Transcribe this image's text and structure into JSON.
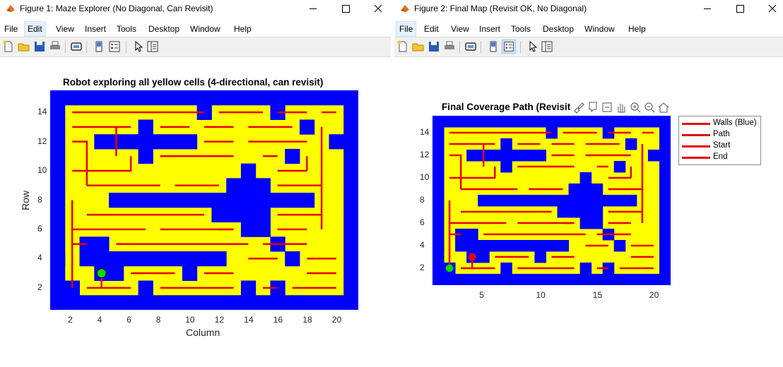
{
  "colors": {
    "wall": "#0000ff",
    "floor": "#ffff00",
    "path": "#e50000",
    "start": "#00dd00",
    "end": "#ee0000",
    "menu_highlight": "#e5f0fb"
  },
  "icons": {
    "app": "matlab-icon",
    "minimize": "minimize-icon",
    "maximize": "maximize-icon",
    "close": "close-icon",
    "new": "new-figure-icon",
    "open": "open-file-icon",
    "save": "save-icon",
    "print": "print-icon",
    "link": "link-plot-icon",
    "colorbar": "colorbar-icon",
    "legend": "insert-legend-icon",
    "pointer": "edit-plot-icon",
    "property": "property-inspector-icon"
  },
  "window1": {
    "title": "Figure 1: Maze Explorer (No Diagonal, Can Revisit)",
    "menu": [
      "File",
      "Edit",
      "View",
      "Insert",
      "Tools",
      "Desktop",
      "Window",
      "Help"
    ],
    "active_menu": "Edit"
  },
  "window2": {
    "title": "Figure 2: Final Map (Revisit OK, No Diagonal)",
    "menu": [
      "File",
      "Edit",
      "View",
      "Insert",
      "Tools",
      "Desktop",
      "Window",
      "Help"
    ],
    "active_menu": "File",
    "axes_toolbar": [
      "brush-icon",
      "data-tips-icon",
      "restore-view-icon",
      "pan-icon",
      "zoom-in-icon",
      "zoom-out-icon",
      "home-icon"
    ]
  },
  "chart_data": [
    {
      "type": "image",
      "title": "Robot exploring all yellow cells (4-directional, can revisit)",
      "xlabel": "Column",
      "ylabel": "Row",
      "xticks": [
        "2",
        "4",
        "6",
        "8",
        "10",
        "12",
        "14",
        "16",
        "18",
        "20"
      ],
      "yticks": [
        "2",
        "4",
        "6",
        "8",
        "10",
        "12",
        "14"
      ],
      "xlim": [
        0.5,
        21.5
      ],
      "ylim": [
        0.5,
        15.5
      ],
      "robot_position": {
        "col": 4,
        "row": 3
      }
    },
    {
      "type": "image",
      "title": "Final Coverage Path (Revisit OK)",
      "xticks": [
        "5",
        "10",
        "15",
        "20"
      ],
      "yticks": [
        "2",
        "4",
        "6",
        "8",
        "10",
        "12",
        "14"
      ],
      "xlim": [
        0.5,
        21.5
      ],
      "ylim": [
        0.5,
        15.5
      ],
      "legend": [
        "Walls (Blue)",
        "Path",
        "Start",
        "End"
      ],
      "legend_position": "outside-right",
      "start": {
        "col": 2,
        "row": 2
      },
      "end": {
        "col": 4,
        "row": 3
      }
    }
  ],
  "maze": {
    "cols": 21,
    "rows": 15,
    "wall_rects": [
      [
        1,
        1,
        21,
        1
      ],
      [
        1,
        15,
        21,
        15
      ],
      [
        1,
        1,
        1,
        15
      ],
      [
        21,
        1,
        21,
        15
      ],
      [
        1,
        4,
        1,
        4
      ],
      [
        2,
        2,
        2,
        2
      ],
      [
        7,
        1,
        7,
        2
      ],
      [
        14,
        1,
        14,
        2
      ],
      [
        16,
        1,
        16,
        2
      ],
      [
        4,
        3,
        5,
        3
      ],
      [
        10,
        3,
        10,
        3
      ],
      [
        3,
        4,
        12,
        4
      ],
      [
        3,
        5,
        4,
        5
      ],
      [
        17,
        4,
        17,
        4
      ],
      [
        16,
        5,
        16,
        5
      ],
      [
        14,
        6,
        15,
        8
      ],
      [
        5,
        8,
        18,
        8
      ],
      [
        12,
        7,
        13,
        7
      ],
      [
        14,
        9,
        14,
        10
      ],
      [
        13,
        9,
        15,
        9
      ],
      [
        4,
        12,
        10,
        12
      ],
      [
        7,
        11,
        7,
        11
      ],
      [
        17,
        11,
        17,
        11
      ],
      [
        7,
        13,
        7,
        13
      ],
      [
        18,
        13,
        18,
        13
      ],
      [
        20,
        12,
        20,
        12
      ],
      [
        11,
        15,
        11,
        14
      ],
      [
        16,
        15,
        16,
        14
      ]
    ],
    "paths_fig1": [
      [
        [
          2,
          14
        ],
        [
          11,
          14
        ]
      ],
      [
        [
          12,
          14
        ],
        [
          15,
          14
        ]
      ],
      [
        [
          16,
          14
        ],
        [
          18,
          14
        ]
      ],
      [
        [
          19,
          14
        ],
        [
          20,
          14
        ]
      ],
      [
        [
          2,
          13
        ],
        [
          6,
          13
        ]
      ],
      [
        [
          8,
          13
        ],
        [
          10,
          13
        ]
      ],
      [
        [
          11,
          13
        ],
        [
          13,
          13
        ]
      ],
      [
        [
          14,
          13
        ],
        [
          17,
          13
        ]
      ],
      [
        [
          19,
          13
        ],
        [
          19,
          6
        ]
      ],
      [
        [
          2,
          12
        ],
        [
          3,
          12
        ],
        [
          3,
          9
        ]
      ],
      [
        [
          11,
          12
        ],
        [
          13,
          12
        ]
      ],
      [
        [
          14,
          12
        ],
        [
          18,
          12
        ]
      ],
      [
        [
          5,
          11
        ],
        [
          5,
          13
        ]
      ],
      [
        [
          2,
          10
        ],
        [
          6,
          10
        ],
        [
          6,
          11
        ]
      ],
      [
        [
          8,
          11
        ],
        [
          13,
          11
        ]
      ],
      [
        [
          15,
          11
        ],
        [
          16,
          11
        ]
      ],
      [
        [
          18,
          11
        ],
        [
          18,
          10
        ]
      ],
      [
        [
          3,
          9
        ],
        [
          8,
          9
        ]
      ],
      [
        [
          9,
          9
        ],
        [
          12,
          9
        ]
      ],
      [
        [
          16,
          10
        ],
        [
          18,
          10
        ]
      ],
      [
        [
          19,
          9
        ],
        [
          16,
          9
        ]
      ],
      [
        [
          2,
          2
        ],
        [
          2,
          8
        ]
      ],
      [
        [
          3,
          7
        ],
        [
          11,
          7
        ]
      ],
      [
        [
          12,
          6
        ],
        [
          13,
          6
        ]
      ],
      [
        [
          16,
          7
        ],
        [
          19,
          7
        ]
      ],
      [
        [
          2,
          6
        ],
        [
          7,
          6
        ]
      ],
      [
        [
          8,
          6
        ],
        [
          13,
          6
        ]
      ],
      [
        [
          16,
          6
        ],
        [
          18,
          6
        ]
      ],
      [
        [
          3,
          5
        ],
        [
          2,
          5
        ]
      ],
      [
        [
          5,
          5
        ],
        [
          14,
          5
        ]
      ],
      [
        [
          15,
          5
        ],
        [
          18,
          5
        ]
      ],
      [
        [
          18,
          4
        ],
        [
          20,
          4
        ]
      ],
      [
        [
          6,
          3
        ],
        [
          9,
          3
        ]
      ],
      [
        [
          11,
          3
        ],
        [
          13,
          3
        ]
      ],
      [
        [
          14,
          4
        ],
        [
          16,
          4
        ]
      ],
      [
        [
          18,
          3
        ],
        [
          20,
          3
        ]
      ],
      [
        [
          3,
          2
        ],
        [
          6,
          2
        ]
      ],
      [
        [
          8,
          2
        ],
        [
          13,
          2
        ]
      ],
      [
        [
          15,
          2
        ],
        [
          16,
          2
        ]
      ],
      [
        [
          17,
          2
        ],
        [
          20,
          2
        ]
      ],
      [
        [
          4,
          2
        ],
        [
          4,
          3
        ]
      ]
    ]
  }
}
